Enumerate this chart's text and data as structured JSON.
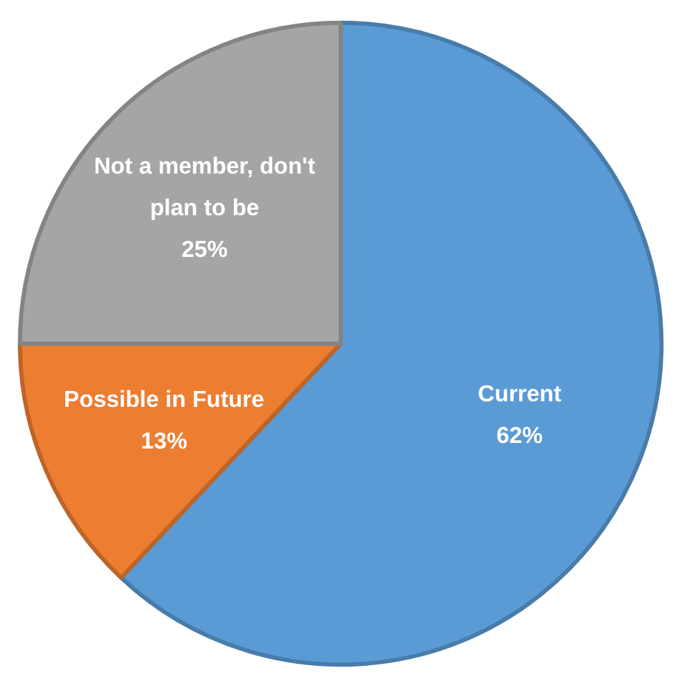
{
  "chart_data": {
    "type": "pie",
    "categories": [
      "Current",
      "Possible in Future",
      "Not a member, don't plan to be"
    ],
    "values": [
      62,
      13,
      25
    ],
    "colors": [
      "#5b9bd5",
      "#ed7d31",
      "#a5a5a5"
    ],
    "value_labels": [
      "62%",
      "13%",
      "25%"
    ]
  }
}
